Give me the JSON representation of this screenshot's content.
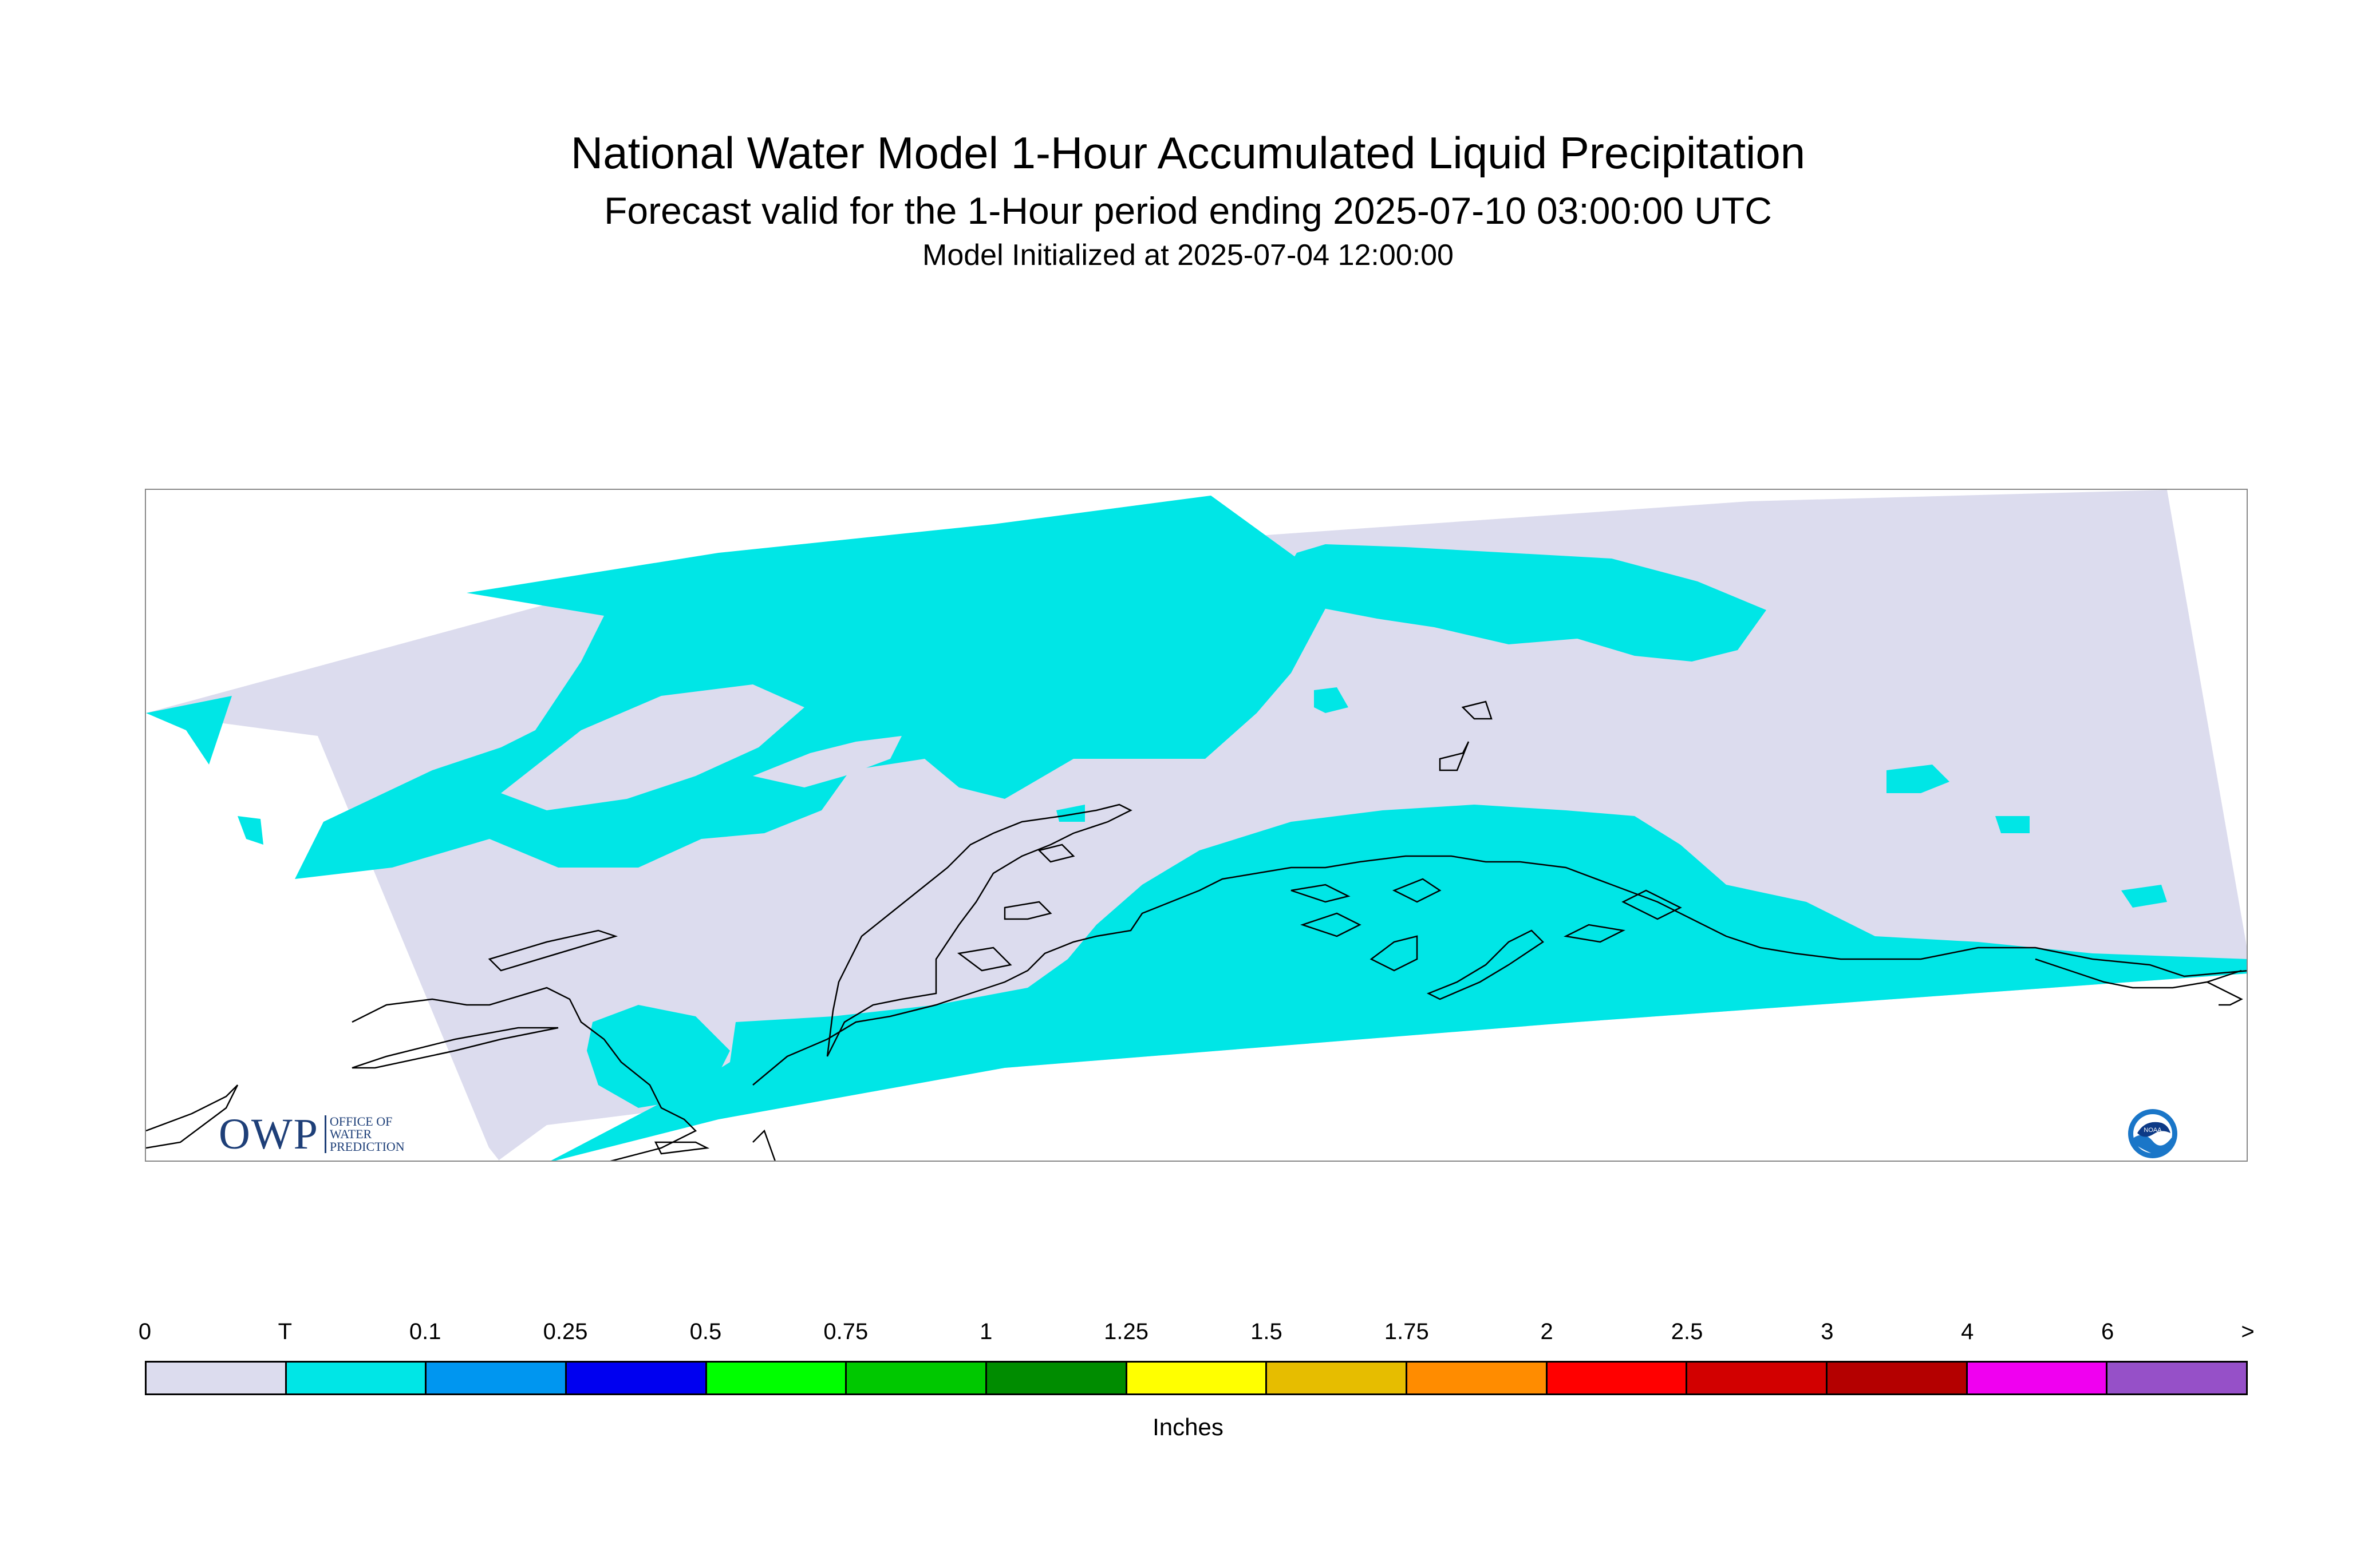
{
  "header": {
    "title": "National Water Model 1-Hour Accumulated Liquid Precipitation",
    "subtitle": "Forecast valid for the 1-Hour period ending 2025-07-10 03:00:00 UTC",
    "init_line": "Model Initialized at 2025-07-04 12:00:00"
  },
  "legend": {
    "tick_labels": [
      "0",
      "T",
      "0.1",
      "0.25",
      "0.5",
      "0.75",
      "1",
      "1.25",
      "1.5",
      "1.75",
      "2",
      "2.5",
      "3",
      "4",
      "6",
      ">"
    ],
    "colors": [
      "#dcdcee",
      "#00e6e6",
      "#0096f0",
      "#0000f0",
      "#00ff00",
      "#00c800",
      "#008c00",
      "#ffff00",
      "#e6bd00",
      "#ff8c00",
      "#ff0000",
      "#d20000",
      "#b40000",
      "#f000f0",
      "#9650c8"
    ],
    "units": "Inches"
  },
  "map": {
    "colors": {
      "no_precip": "#dcdcee",
      "trace": "#00e6e6",
      "coastline": "#000000",
      "outside": "#ffffff"
    }
  },
  "logos": {
    "owp_letters": "OWP",
    "owp_sub": [
      "OFFICE OF",
      "WATER",
      "PREDICTION"
    ],
    "noaa": "NOAA"
  }
}
